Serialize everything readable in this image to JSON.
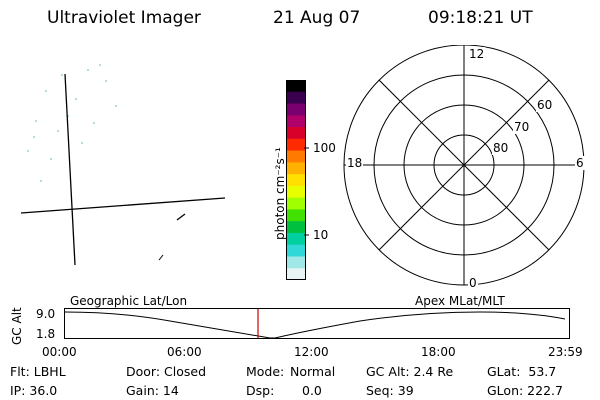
{
  "header": {
    "instrument": "Ultraviolet Imager",
    "date": "21 Aug 07",
    "time": "09:18:21 UT"
  },
  "colorbar": {
    "unit_label": "photon cm⁻²s⁻¹",
    "tick_labels": [
      "100",
      "10"
    ],
    "colors": [
      "#000000",
      "#3a0050",
      "#7a0070",
      "#b0006a",
      "#d8002a",
      "#ff2a00",
      "#ff7a00",
      "#ffb000",
      "#ffe000",
      "#e8ff00",
      "#a0ff00",
      "#40e000",
      "#00c040",
      "#00d0a0",
      "#30d8d8",
      "#a0e8e8",
      "#e8f4f4"
    ]
  },
  "polar_plot": {
    "mlt_labels": {
      "top": "12",
      "left": "18",
      "right": "6",
      "bottom": "0"
    },
    "lat_labels": [
      "60",
      "70",
      "80"
    ]
  },
  "timeline": {
    "y_axis_label": "GC Alt",
    "y_ticks": [
      "9.0",
      "1.8"
    ],
    "left_title": "Geographic Lat/Lon",
    "right_title": "Apex MLat/MLT",
    "x_ticks": [
      "00:00",
      "06:00",
      "12:00",
      "18:00",
      "23:59"
    ],
    "marker_color": "#cc0000"
  },
  "status": {
    "flt": "Flt: LBHL",
    "ip": "IP: 36.0",
    "door": "Door: Closed",
    "gain": "Gain: 14",
    "mode_label": "Mode:",
    "mode_value": "Normal",
    "dsp_label": "Dsp:",
    "dsp_value": "0.0",
    "gc_alt": "GC Alt: 2.4 Re",
    "seq": "Seq: 39",
    "glat": "GLat:  53.7",
    "glon": "GLon: 222.7"
  }
}
